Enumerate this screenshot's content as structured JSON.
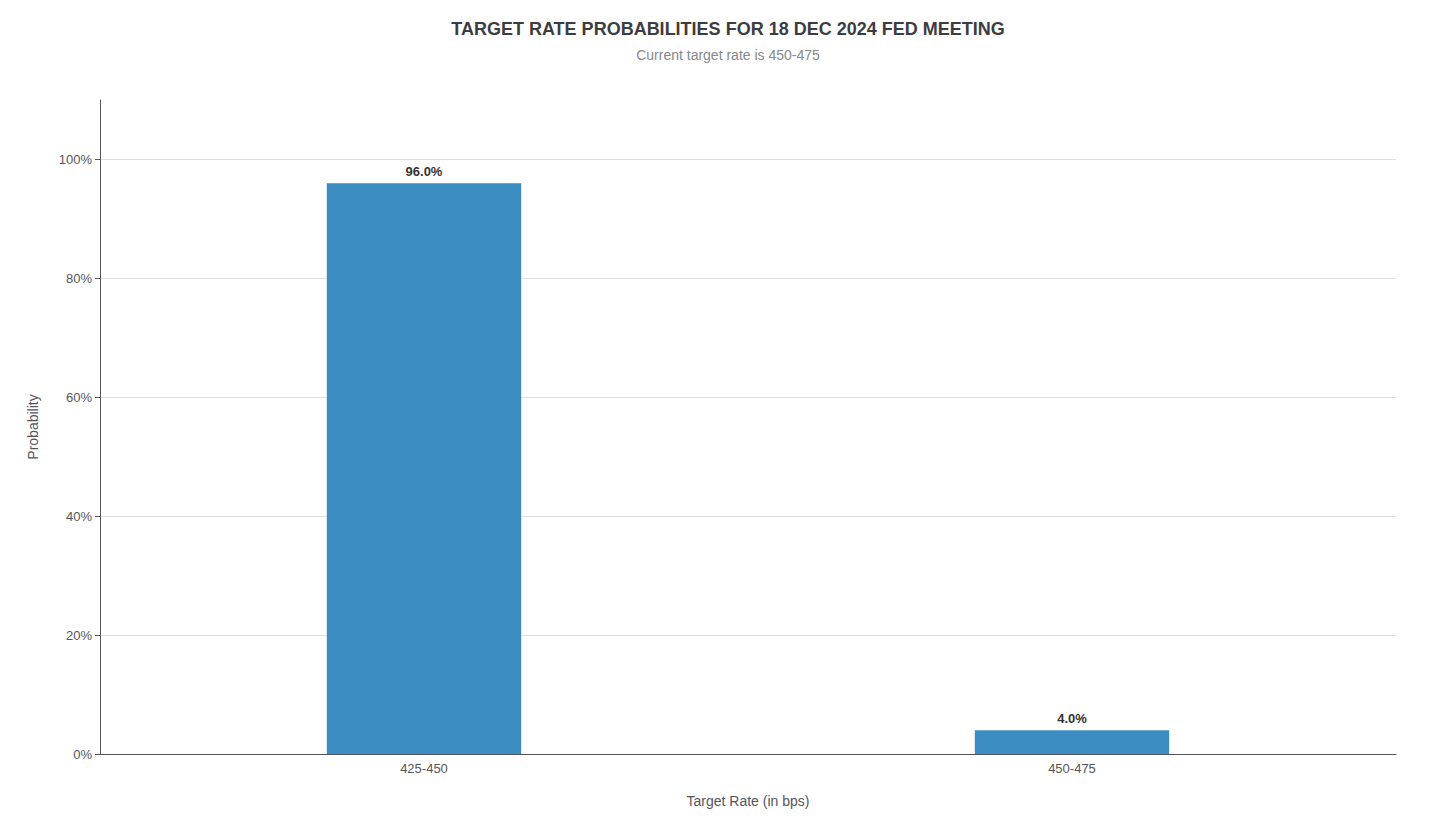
{
  "chart_data": {
    "type": "bar",
    "title": "TARGET RATE PROBABILITIES FOR 18 DEC 2024 FED MEETING",
    "subtitle": "Current target rate is 450-475",
    "xlabel": "Target Rate (in bps)",
    "ylabel": "Probability",
    "categories": [
      "425-450",
      "450-475"
    ],
    "values": [
      96.0,
      4.0
    ],
    "value_labels": [
      "96.0%",
      "4.0%"
    ],
    "color": "#3b8dc2",
    "ylim": [
      0,
      110
    ],
    "yticks": [
      {
        "value": 0,
        "label": "0%"
      },
      {
        "value": 20,
        "label": "20%"
      },
      {
        "value": 40,
        "label": "40%"
      },
      {
        "value": 60,
        "label": "60%"
      },
      {
        "value": 80,
        "label": "80%"
      },
      {
        "value": 100,
        "label": "100%"
      }
    ],
    "grid": true
  }
}
